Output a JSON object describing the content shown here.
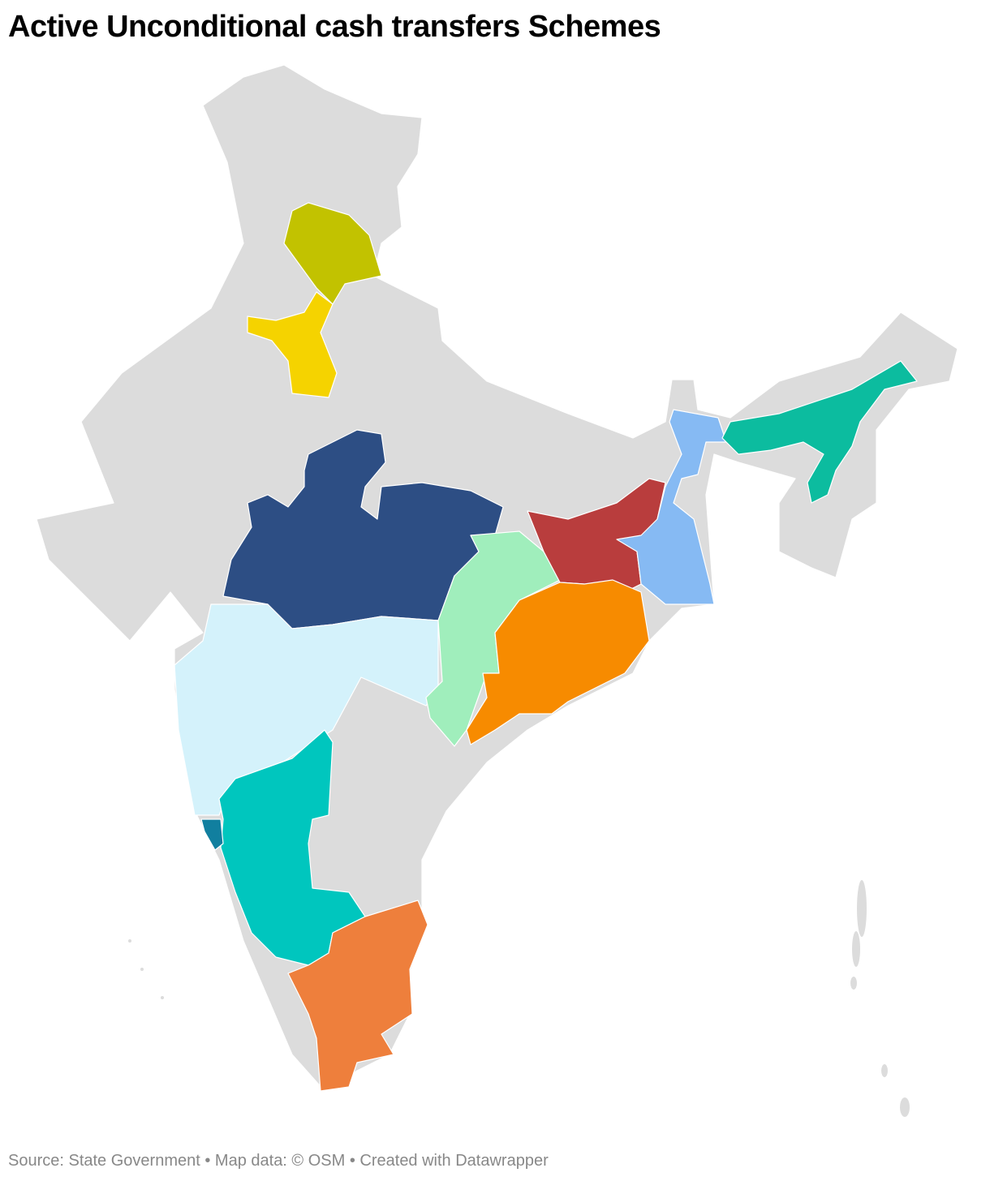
{
  "title": "Active Unconditional cash transfers Schemes",
  "footer": {
    "source": "Source: State Government",
    "map_data": "Map data: © OSM",
    "created_with": "Created with Datawrapper",
    "separator": " • "
  },
  "map": {
    "base_color": "#dcdcdc",
    "regions": {
      "himachal_pradesh": {
        "color": "#c2c200"
      },
      "haryana": {
        "color": "#f5d300"
      },
      "madhya_pradesh": {
        "color": "#2d4e84"
      },
      "maharashtra": {
        "color": "#d4f2fb"
      },
      "chhattisgarh": {
        "color": "#a0eebc"
      },
      "jharkhand": {
        "color": "#b93d3d"
      },
      "west_bengal": {
        "color": "#86baf3"
      },
      "odisha": {
        "color": "#f78b00"
      },
      "assam": {
        "color": "#0cbc9f"
      },
      "goa": {
        "color": "#117f9f"
      },
      "karnataka": {
        "color": "#00c6be"
      },
      "tamil_nadu": {
        "color": "#ee7f3c"
      }
    }
  }
}
